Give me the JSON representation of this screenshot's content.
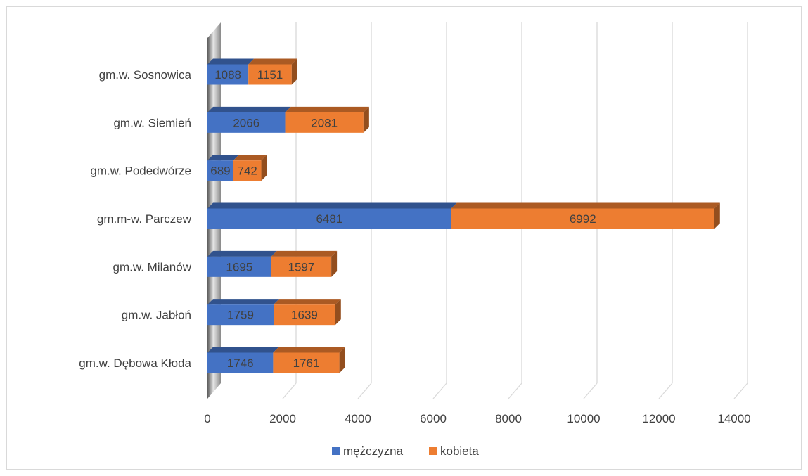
{
  "chart_data": {
    "type": "bar",
    "orientation": "horizontal",
    "stacked": true,
    "three_d": true,
    "categories": [
      "gm.w. Dębowa Kłoda",
      "gm.w. Jabłoń",
      "gm.w. Milanów",
      "gm.m-w. Parczew",
      "gm.w. Podedwórze",
      "gm.w. Siemień",
      "gm.w. Sosnowica"
    ],
    "series": [
      {
        "name": "mężczyzna",
        "color": "#4472C4",
        "values": [
          1746,
          1759,
          1695,
          6481,
          689,
          2066,
          1088
        ]
      },
      {
        "name": "kobieta",
        "color": "#ED7D31",
        "values": [
          1761,
          1639,
          1597,
          6992,
          742,
          2081,
          1151
        ]
      }
    ],
    "xlim": [
      0,
      14000
    ],
    "ticks": [
      "0",
      "2000",
      "4000",
      "6000",
      "8000",
      "10000",
      "12000",
      "14000"
    ],
    "grid": true,
    "legend_position": "bottom",
    "title": "",
    "xlabel": "",
    "ylabel": ""
  }
}
